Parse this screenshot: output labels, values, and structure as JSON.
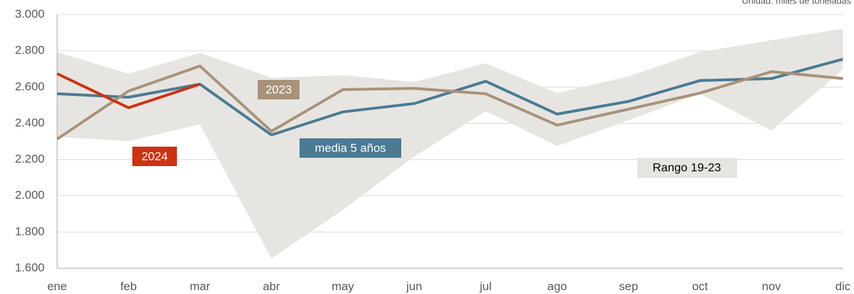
{
  "chart_data": {
    "type": "line",
    "subtitle": "Unidad: miles de toneladas",
    "categories": [
      "ene",
      "feb",
      "mar",
      "abr",
      "may",
      "jun",
      "jul",
      "ago",
      "sep",
      "oct",
      "nov",
      "dic"
    ],
    "band": {
      "name": "Rango 19-23",
      "color": "#e7e5e1",
      "upper": [
        2793,
        2674,
        2789,
        2651,
        2666,
        2628,
        2731,
        2567,
        2659,
        2793,
        2858,
        2923
      ],
      "lower": [
        2325,
        2302,
        2394,
        1654,
        1922,
        2217,
        2467,
        2275,
        2417,
        2563,
        2360,
        2697
      ]
    },
    "series": [
      {
        "name": "media 5 años",
        "color": "#4a7b93",
        "values": [
          2563,
          2544,
          2616,
          2336,
          2463,
          2509,
          2632,
          2451,
          2521,
          2636,
          2647,
          2754
        ]
      },
      {
        "name": "2023",
        "color": "#a89279",
        "values": [
          2313,
          2578,
          2716,
          2356,
          2586,
          2593,
          2563,
          2390,
          2478,
          2567,
          2685,
          2647
        ]
      },
      {
        "name": "2024",
        "color": "#cc3311",
        "values": [
          2674,
          2486,
          2616,
          null,
          null,
          null,
          null,
          null,
          null,
          null,
          null,
          null
        ]
      }
    ],
    "ylim": [
      1600,
      3000
    ],
    "yticks": [
      {
        "value": 1600,
        "label": "1.600"
      },
      {
        "value": 1800,
        "label": "1.800"
      },
      {
        "value": 2000,
        "label": "2.000"
      },
      {
        "value": 2200,
        "label": "2.200"
      },
      {
        "value": 2400,
        "label": "2.400"
      },
      {
        "value": 2600,
        "label": "2.600"
      },
      {
        "value": 2800,
        "label": "2.800"
      },
      {
        "value": 3000,
        "label": "3.000"
      }
    ],
    "grid": true
  }
}
